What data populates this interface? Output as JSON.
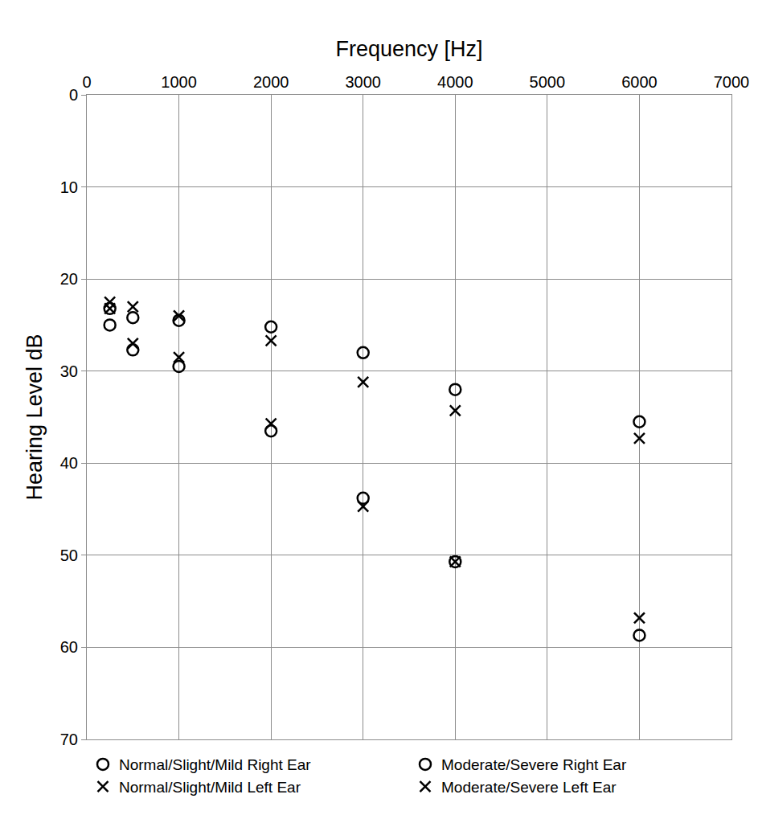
{
  "chart_data": {
    "type": "scatter",
    "x_label": "Frequency [Hz]",
    "y_label": "Hearing Level dB",
    "x": [
      250,
      500,
      1000,
      2000,
      3000,
      4000,
      6000
    ],
    "series": [
      {
        "name": "Normal/Slight/Mild Right Ear",
        "color": "#000000",
        "marker": "circle-open",
        "values": [
          23.2,
          24.2,
          24.5,
          25.2,
          28,
          32,
          35.5
        ]
      },
      {
        "name": "Moderate/Severe Right Ear",
        "color": "#000000",
        "marker": "circle-open",
        "values": [
          25,
          27.7,
          29.5,
          36.5,
          43.8,
          50.7,
          58.7
        ]
      },
      {
        "name": "Normal/Slight/Mild Left Ear",
        "color": "#000000",
        "marker": "x-thin",
        "values": [
          22.5,
          23,
          24,
          26.7,
          31.2,
          34.3,
          37.3
        ]
      },
      {
        "name": "Moderate/Severe Left Ear",
        "color": "#000000",
        "marker": "x-thin",
        "values": [
          23.2,
          27,
          28.5,
          35.7,
          44.7,
          50.7,
          56.8
        ]
      }
    ],
    "xlim": [
      0,
      7000
    ],
    "xticks": [
      0,
      1000,
      2000,
      3000,
      4000,
      5000,
      6000,
      7000
    ],
    "ylim": [
      70,
      0
    ],
    "yticks": [
      0,
      10,
      20,
      30,
      40,
      50,
      60,
      70
    ],
    "grid": true,
    "legend": "bottom"
  }
}
